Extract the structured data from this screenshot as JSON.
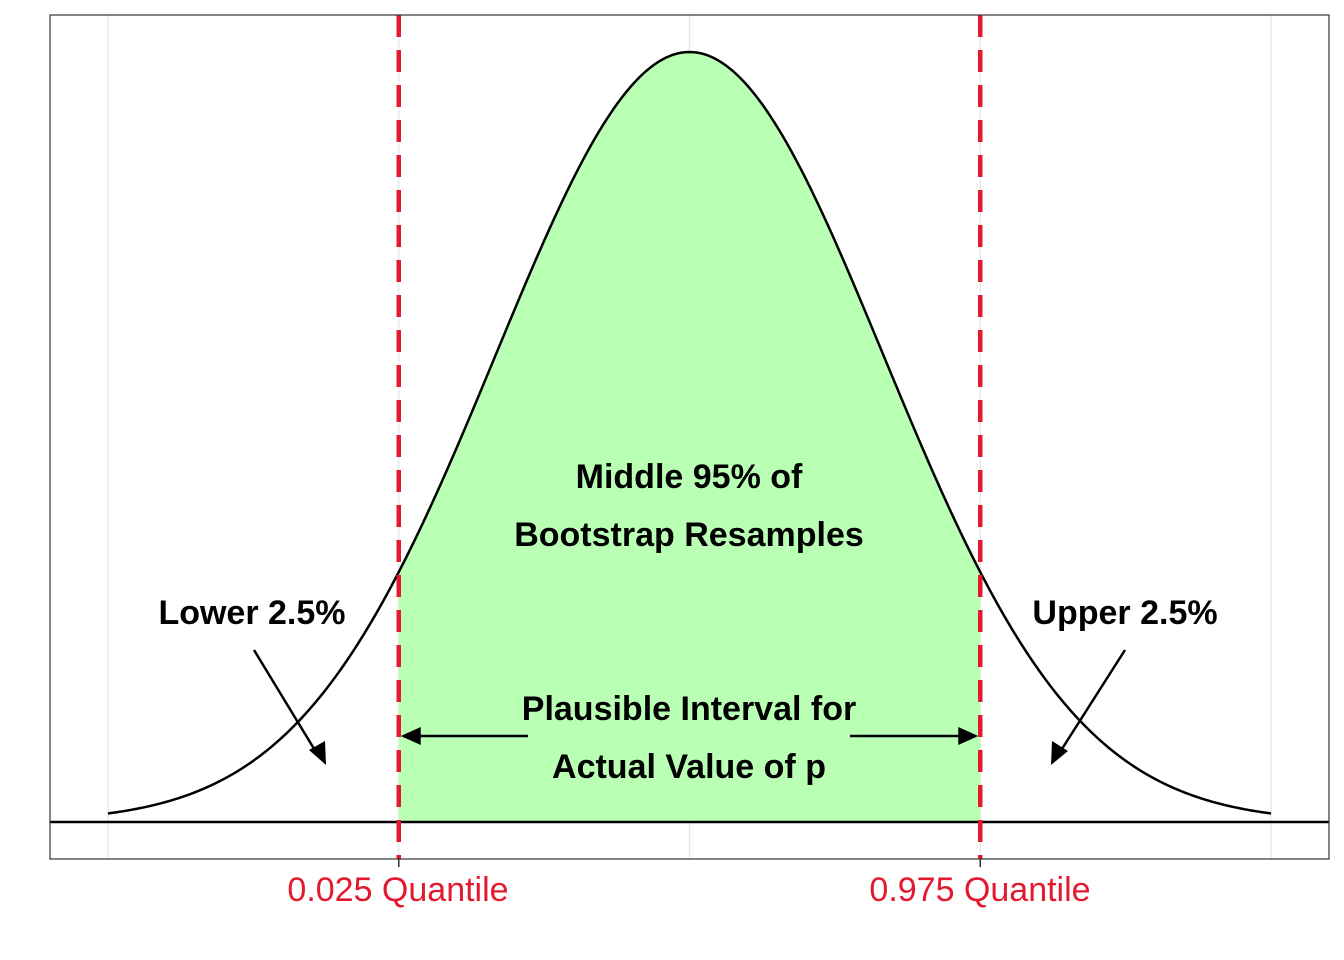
{
  "chart_data": {
    "type": "area",
    "title": "",
    "xlabel": "",
    "ylabel": "",
    "distribution": {
      "shape": "normal",
      "mean": 0,
      "sd": 1
    },
    "xlim": [
      -3,
      3
    ],
    "grid": {
      "vertical": true,
      "horizontal": false
    },
    "shaded_region": {
      "from_quantile": 0.025,
      "to_quantile": 0.975,
      "z_from": -1.5,
      "z_to": 1.5
    },
    "quantile_lines": [
      {
        "label": "0.025 Quantile",
        "z": -1.5
      },
      {
        "label": "0.975 Quantile",
        "z": 1.5
      }
    ],
    "annotations": {
      "middle": [
        "Middle 95% of",
        "Bootstrap Resamples"
      ],
      "interval": [
        "Plausible Interval for",
        "Actual Value of p"
      ],
      "lower": "Lower 2.5%",
      "upper": "Upper 2.5%"
    },
    "colors": {
      "fill": "#b9ffb4",
      "curve": "#000000",
      "quantile_line": "#e31a2f",
      "quantile_label": "#e31a2f",
      "grid": "#e6e6e6",
      "border": "#333333"
    }
  }
}
